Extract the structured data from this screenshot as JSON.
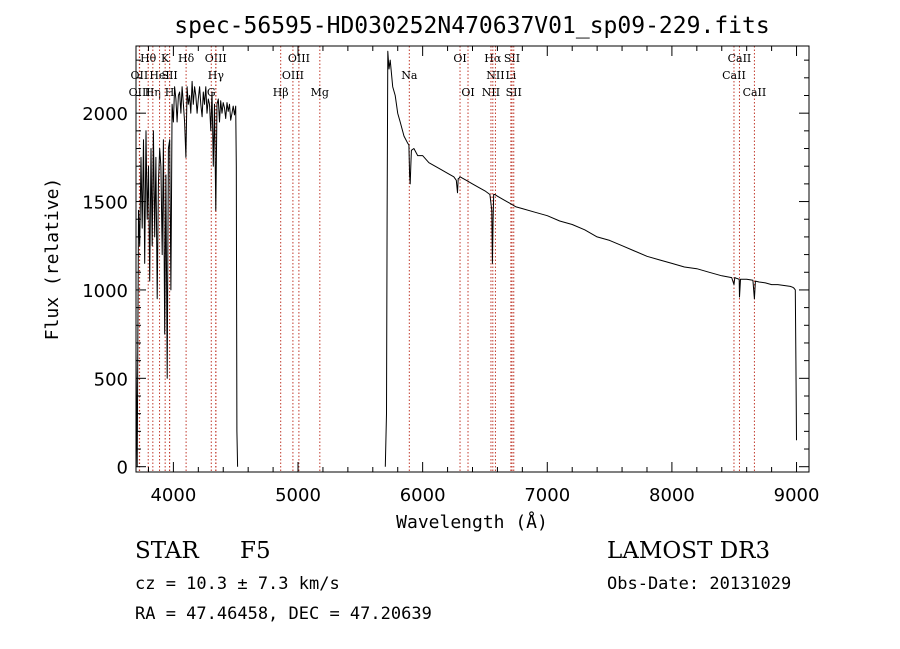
{
  "chart_data": {
    "type": "line",
    "title": "spec-56595-HD030252N470637V01_sp09-229.fits",
    "xlabel": "Wavelength (Å)",
    "ylabel": "Flux (relative)",
    "xlim": [
      3700,
      9100
    ],
    "ylim": [
      -30,
      2380
    ],
    "xticks": [
      4000,
      5000,
      6000,
      7000,
      8000,
      9000
    ],
    "xtick_labels": [
      "4000",
      "5000",
      "6000",
      "7000",
      "8000",
      "9000"
    ],
    "yticks": [
      0,
      500,
      1000,
      1500,
      2000
    ],
    "ytick_labels": [
      "0",
      "500",
      "1000",
      "1500",
      "2000"
    ],
    "series": [
      {
        "name": "flux-blue",
        "x": [
          3700,
          3710,
          3720,
          3730,
          3740,
          3750,
          3760,
          3770,
          3780,
          3790,
          3800,
          3810,
          3820,
          3830,
          3840,
          3850,
          3860,
          3870,
          3880,
          3890,
          3900,
          3910,
          3920,
          3930,
          3940,
          3950,
          3960,
          3970,
          3980,
          3990,
          4000,
          4010,
          4020,
          4030,
          4040,
          4050,
          4060,
          4070,
          4080,
          4090,
          4100,
          4110,
          4120,
          4130,
          4140,
          4150,
          4160,
          4170,
          4180,
          4190,
          4200,
          4210,
          4220,
          4230,
          4240,
          4250,
          4260,
          4270,
          4280,
          4290,
          4300,
          4310,
          4320,
          4330,
          4340,
          4350,
          4360,
          4370,
          4380,
          4390,
          4400,
          4410,
          4420,
          4430,
          4440,
          4450,
          4460,
          4470,
          4480,
          4490,
          4500,
          4505,
          4510,
          4515
        ],
        "y": [
          650,
          0,
          1450,
          1250,
          1750,
          1350,
          1850,
          1150,
          1900,
          1400,
          1700,
          1050,
          1800,
          1250,
          1900,
          1300,
          1750,
          950,
          1600,
          1800,
          1700,
          1200,
          1850,
          750,
          1650,
          500,
          1800,
          1850,
          1000,
          2050,
          1950,
          2150,
          2080,
          1950,
          2100,
          2120,
          2000,
          2150,
          2050,
          1950,
          1750,
          2150,
          2050,
          2100,
          2000,
          2180,
          2050,
          2150,
          2100,
          2000,
          2080,
          2150,
          2050,
          1980,
          2120,
          2050,
          2150,
          2000,
          2080,
          2050,
          1900,
          2120,
          1700,
          2050,
          1450,
          2050,
          2080,
          1950,
          2070,
          2000,
          2060,
          2030,
          1970,
          2060,
          2010,
          2050,
          1960,
          2000,
          2040,
          1990,
          2040,
          1700,
          200,
          0
        ]
      },
      {
        "name": "flux-red",
        "x": [
          5700,
          5710,
          5715,
          5720,
          5730,
          5740,
          5760,
          5780,
          5800,
          5820,
          5850,
          5880,
          5890,
          5895,
          5900,
          5905,
          5910,
          5930,
          5960,
          6000,
          6050,
          6100,
          6150,
          6200,
          6250,
          6270,
          6280,
          6285,
          6290,
          6300,
          6350,
          6400,
          6450,
          6500,
          6540,
          6555,
          6560,
          6565,
          6570,
          6580,
          6600,
          6650,
          6700,
          6750,
          6800,
          6900,
          7000,
          7100,
          7200,
          7300,
          7400,
          7500,
          7600,
          7700,
          7800,
          7900,
          8000,
          8100,
          8200,
          8300,
          8400,
          8480,
          8498,
          8505,
          8520,
          8540,
          8542,
          8550,
          8600,
          8650,
          8662,
          8670,
          8700,
          8750,
          8800,
          8850,
          8900,
          8950,
          8970,
          8980,
          8990,
          8995,
          9000
        ],
        "y": [
          0,
          300,
          1400,
          2350,
          2250,
          2300,
          2150,
          2100,
          2000,
          1950,
          1870,
          1830,
          1820,
          1650,
          1600,
          1700,
          1790,
          1800,
          1760,
          1760,
          1720,
          1700,
          1680,
          1660,
          1640,
          1620,
          1550,
          1630,
          1630,
          1640,
          1620,
          1600,
          1580,
          1560,
          1540,
          1450,
          1150,
          1400,
          1540,
          1540,
          1530,
          1510,
          1490,
          1470,
          1460,
          1440,
          1420,
          1390,
          1370,
          1340,
          1300,
          1280,
          1250,
          1220,
          1190,
          1170,
          1150,
          1130,
          1120,
          1100,
          1080,
          1070,
          1030,
          1070,
          1065,
          1060,
          960,
          1060,
          1060,
          1055,
          950,
          1050,
          1045,
          1040,
          1030,
          1030,
          1025,
          1020,
          1015,
          1010,
          1000,
          600,
          150
        ]
      }
    ],
    "lines": [
      {
        "name": "Hθ",
        "x": 3798,
        "row": 0
      },
      {
        "name": "OII",
        "x": 3727,
        "row": 1
      },
      {
        "name": "OIII",
        "x": 3729,
        "row": 2
      },
      {
        "name": "Hη",
        "x": 3835,
        "row": 2
      },
      {
        "name": "HeI",
        "x": 3889,
        "row": 1
      },
      {
        "name": "K",
        "x": 3934,
        "row": 0
      },
      {
        "name": "SII",
        "x": 3970,
        "row": 1
      },
      {
        "name": "H",
        "x": 3969,
        "row": 2
      },
      {
        "name": "Hδ",
        "x": 4102,
        "row": 0
      },
      {
        "name": "OIII",
        "x": 4340,
        "row": 0
      },
      {
        "name": "Hγ",
        "x": 4341,
        "row": 1
      },
      {
        "name": "G",
        "x": 4304,
        "row": 2
      },
      {
        "name": "OIII",
        "x": 5007,
        "row": 0
      },
      {
        "name": "OIII",
        "x": 4959,
        "row": 1
      },
      {
        "name": "Hβ",
        "x": 4861,
        "row": 2
      },
      {
        "name": "Mg",
        "x": 5175,
        "row": 2
      },
      {
        "name": "Na",
        "x": 5893,
        "row": 1
      },
      {
        "name": "OI",
        "x": 6300,
        "row": 0
      },
      {
        "name": "OI",
        "x": 6364,
        "row": 2
      },
      {
        "name": "Hα",
        "x": 6563,
        "row": 0
      },
      {
        "name": "SII",
        "x": 6717,
        "row": 0
      },
      {
        "name": "NII",
        "x": 6584,
        "row": 1
      },
      {
        "name": "Li",
        "x": 6708,
        "row": 1
      },
      {
        "name": "NII",
        "x": 6548,
        "row": 2
      },
      {
        "name": "SII",
        "x": 6731,
        "row": 2
      },
      {
        "name": "CaII",
        "x": 8542,
        "row": 0
      },
      {
        "name": "CaII",
        "x": 8498,
        "row": 1
      },
      {
        "name": "CaII",
        "x": 8662,
        "row": 2
      }
    ]
  },
  "info": {
    "object_type": "STAR",
    "object_class": "F5",
    "survey": "LAMOST DR3",
    "redshift": "cz = 10.3 ± 7.3 km/s",
    "obs_date": "Obs-Date: 20131029",
    "coords": "RA =  47.46458, DEC =  47.20639"
  },
  "colors": {
    "spectrum": "#000000",
    "lines": "#c0392b",
    "axes": "#000000"
  }
}
